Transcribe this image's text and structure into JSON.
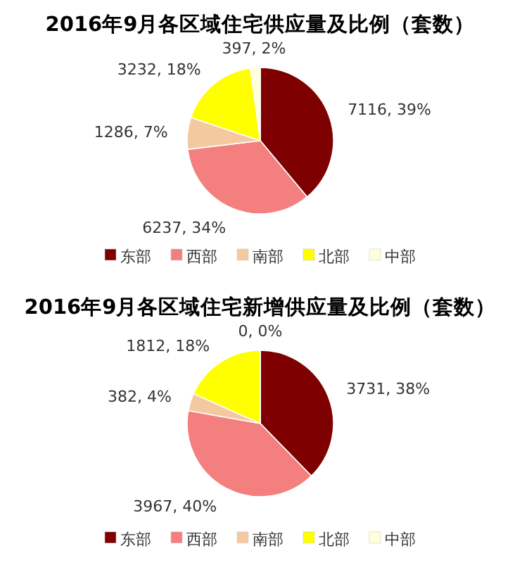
{
  "chart_data": [
    {
      "type": "pie",
      "title": "2016年9月各区域住宅供应量及比例（套数）",
      "categories": [
        "东部",
        "西部",
        "南部",
        "北部",
        "中部"
      ],
      "values": [
        7116,
        6237,
        1286,
        3232,
        397
      ],
      "colors": [
        "#7f0000",
        "#f47f7f",
        "#f5c9a0",
        "#ffff00",
        "#ffffd9"
      ],
      "value_labels": [
        "7116, 39%",
        "6237, 34%",
        "1286, 7%",
        "3232, 18%",
        "397, 2%"
      ],
      "legend": "bottom"
    },
    {
      "type": "pie",
      "title": "2016年9月各区域住宅新增供应量及比例（套数）",
      "categories": [
        "东部",
        "西部",
        "南部",
        "北部",
        "中部"
      ],
      "values": [
        3731,
        3967,
        382,
        1812,
        0
      ],
      "colors": [
        "#7f0000",
        "#f47f7f",
        "#f5c9a0",
        "#ffff00",
        "#ffffd9"
      ],
      "value_labels": [
        "3731, 38%",
        "3967, 40%",
        "382, 4%",
        "1812, 18%",
        "0, 0%"
      ],
      "legend": "bottom"
    }
  ]
}
